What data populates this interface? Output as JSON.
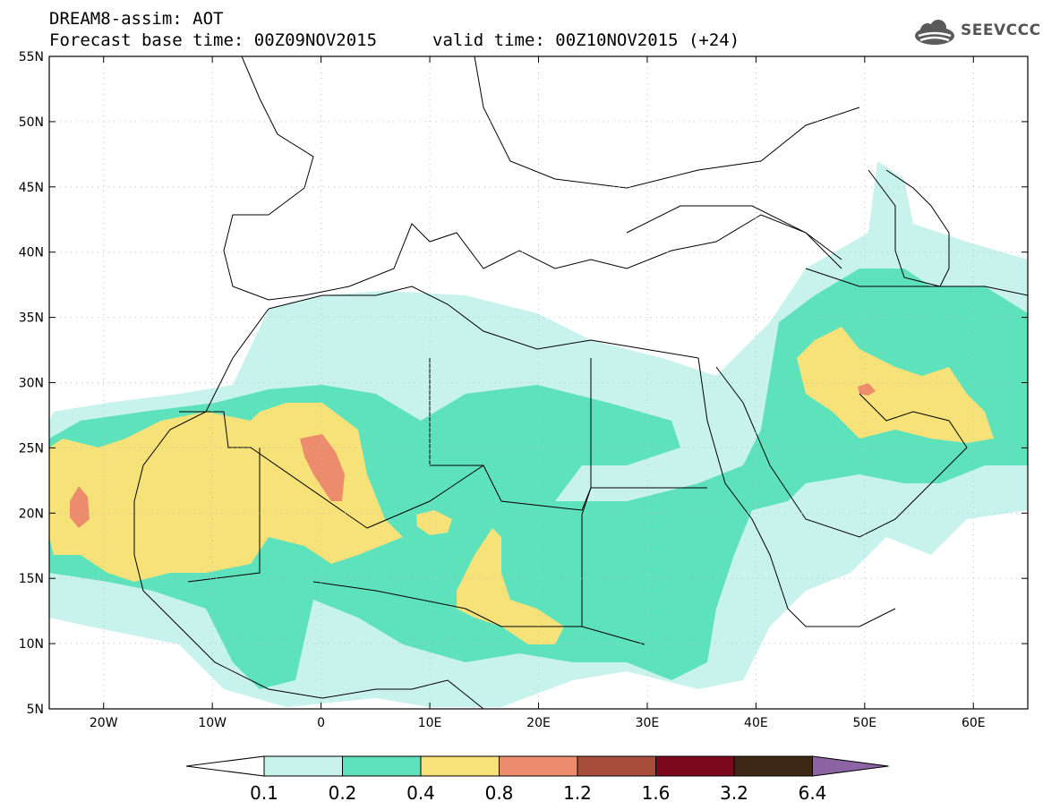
{
  "header": {
    "title": "DREAM8-assim: AOT",
    "base_time": "Forecast base time: 00Z09NOV2015",
    "valid_time": "valid time: 00Z10NOV2015 (+24)"
  },
  "logo": {
    "text": "SEEVCCC",
    "icon": "cloud-icon"
  },
  "map": {
    "lon_range": [
      -25,
      65
    ],
    "lat_range": [
      5,
      55
    ],
    "lon_ticks": [
      {
        "value": -20,
        "label": "20W"
      },
      {
        "value": -10,
        "label": "10W"
      },
      {
        "value": 0,
        "label": "0"
      },
      {
        "value": 10,
        "label": "10E"
      },
      {
        "value": 20,
        "label": "20E"
      },
      {
        "value": 30,
        "label": "30E"
      },
      {
        "value": 40,
        "label": "40E"
      },
      {
        "value": 50,
        "label": "50E"
      },
      {
        "value": 60,
        "label": "60E"
      }
    ],
    "lat_ticks": [
      {
        "value": 55,
        "label": "55N"
      },
      {
        "value": 50,
        "label": "50N"
      },
      {
        "value": 45,
        "label": "45N"
      },
      {
        "value": 40,
        "label": "40N"
      },
      {
        "value": 35,
        "label": "35N"
      },
      {
        "value": 30,
        "label": "30N"
      },
      {
        "value": 25,
        "label": "25N"
      },
      {
        "value": 20,
        "label": "20N"
      },
      {
        "value": 15,
        "label": "15N"
      },
      {
        "value": 10,
        "label": "10N"
      },
      {
        "value": 5,
        "label": "5N"
      }
    ],
    "grid": true
  },
  "colorbar": {
    "levels": [
      "0.1",
      "0.2",
      "0.4",
      "0.8",
      "1.2",
      "1.6",
      "3.2",
      "6.4"
    ],
    "colors": [
      "#ffffff",
      "#c8f2ec",
      "#5ee2bc",
      "#f7e27a",
      "#ec8c6c",
      "#a84c3c",
      "#7c0820",
      "#3c2814",
      "#8c64a4"
    ]
  }
}
